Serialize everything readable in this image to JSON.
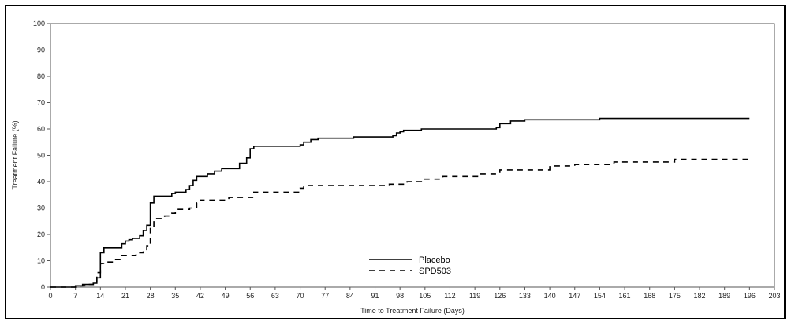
{
  "chart_data": {
    "type": "line",
    "title": "",
    "xlabel": "Time to Treatment Failure (Days)",
    "ylabel": "Treatment Failure (%)",
    "xlim": [
      0,
      203
    ],
    "ylim": [
      0,
      100
    ],
    "xticks": [
      0,
      7,
      14,
      21,
      28,
      35,
      42,
      49,
      56,
      63,
      70,
      77,
      84,
      91,
      98,
      105,
      112,
      119,
      126,
      133,
      140,
      147,
      154,
      161,
      168,
      175,
      182,
      189,
      196,
      203
    ],
    "yticks": [
      0,
      10,
      20,
      30,
      40,
      50,
      60,
      70,
      80,
      90,
      100
    ],
    "grid": false,
    "legend_position": "bottom-center",
    "series": [
      {
        "name": "Placebo",
        "style": "solid",
        "color": "#000000",
        "step": true,
        "points": [
          [
            0,
            0
          ],
          [
            7,
            0.5
          ],
          [
            9,
            1
          ],
          [
            12,
            1.5
          ],
          [
            13,
            3.5
          ],
          [
            14,
            13
          ],
          [
            15,
            15
          ],
          [
            20,
            16.5
          ],
          [
            21,
            17.5
          ],
          [
            22,
            18
          ],
          [
            23,
            18.5
          ],
          [
            25,
            19.5
          ],
          [
            26,
            21.5
          ],
          [
            27,
            23.5
          ],
          [
            28,
            32
          ],
          [
            29,
            34.5
          ],
          [
            34,
            35.5
          ],
          [
            35,
            36
          ],
          [
            38,
            37
          ],
          [
            39,
            38.5
          ],
          [
            40,
            40.5
          ],
          [
            41,
            42
          ],
          [
            44,
            43
          ],
          [
            46,
            44
          ],
          [
            48,
            45
          ],
          [
            53,
            47
          ],
          [
            55,
            49
          ],
          [
            56,
            52.5
          ],
          [
            57,
            53.5
          ],
          [
            70,
            54
          ],
          [
            71,
            55
          ],
          [
            73,
            56
          ],
          [
            75,
            56.5
          ],
          [
            85,
            57
          ],
          [
            96,
            57.5
          ],
          [
            97,
            58.5
          ],
          [
            98,
            59
          ],
          [
            99,
            59.5
          ],
          [
            104,
            60
          ],
          [
            125,
            60.5
          ],
          [
            126,
            62
          ],
          [
            129,
            63
          ],
          [
            133,
            63.5
          ],
          [
            154,
            64
          ],
          [
            196,
            64
          ]
        ]
      },
      {
        "name": "SPD503",
        "style": "dashed",
        "color": "#000000",
        "step": true,
        "points": [
          [
            0,
            0
          ],
          [
            7,
            0.5
          ],
          [
            10,
            1
          ],
          [
            12,
            2
          ],
          [
            13,
            5.5
          ],
          [
            14,
            9
          ],
          [
            15,
            9.5
          ],
          [
            18,
            10.5
          ],
          [
            20,
            12
          ],
          [
            24,
            13
          ],
          [
            26,
            14
          ],
          [
            27,
            15.5
          ],
          [
            28,
            22.5
          ],
          [
            29,
            26
          ],
          [
            32,
            27
          ],
          [
            34,
            28
          ],
          [
            35,
            29.5
          ],
          [
            39,
            30
          ],
          [
            41,
            32
          ],
          [
            42,
            33
          ],
          [
            50,
            34
          ],
          [
            57,
            36
          ],
          [
            70,
            37.5
          ],
          [
            71,
            38.5
          ],
          [
            95,
            39
          ],
          [
            100,
            40
          ],
          [
            104,
            41
          ],
          [
            110,
            42
          ],
          [
            120,
            43
          ],
          [
            126,
            44.5
          ],
          [
            140,
            46
          ],
          [
            147,
            46.5
          ],
          [
            158,
            47.5
          ],
          [
            175,
            48.5
          ],
          [
            196,
            48.5
          ]
        ]
      }
    ]
  }
}
